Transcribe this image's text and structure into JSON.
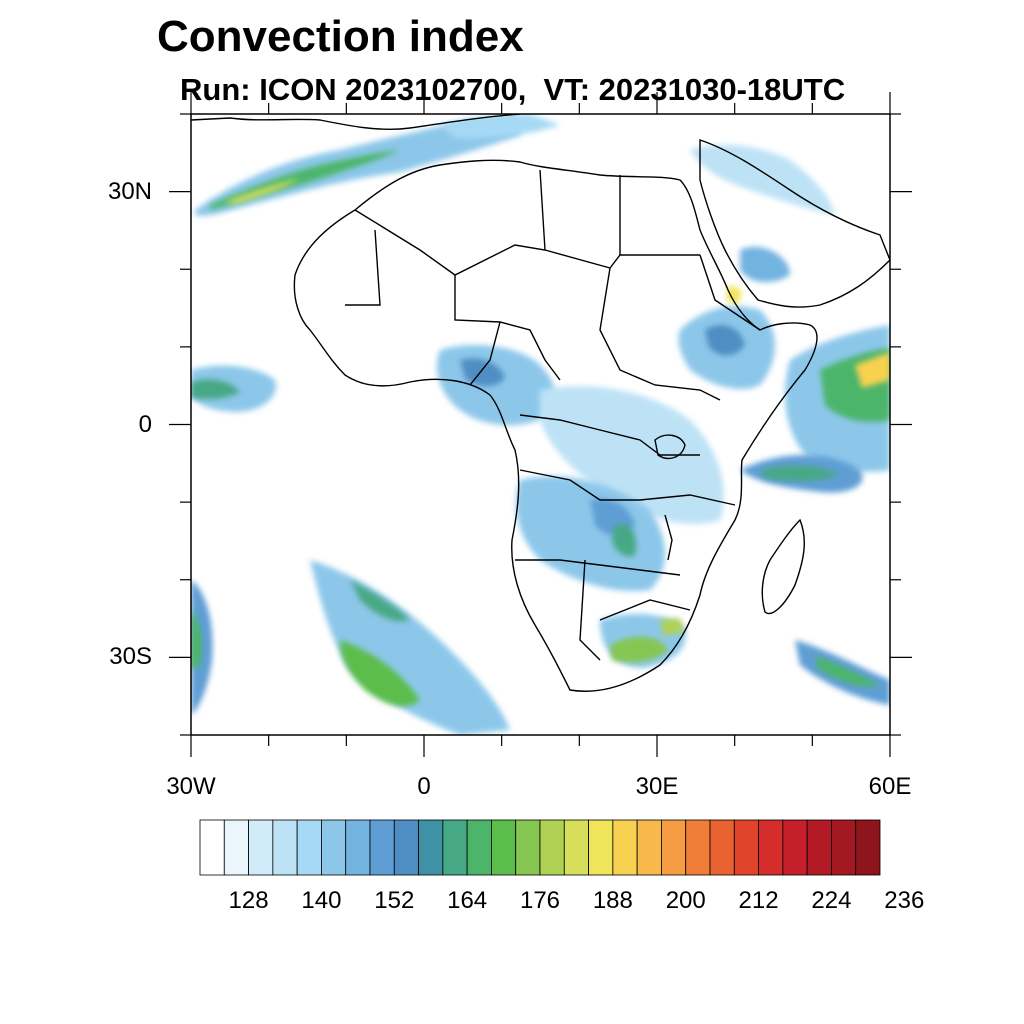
{
  "title": "Convection index",
  "subtitle": "Run: ICON 2023102700,  VT: 20231030-18UTC",
  "map": {
    "lon_range": [
      -30,
      60
    ],
    "lat_range": [
      -40,
      40
    ],
    "x_ticks": [
      {
        "lon": -30,
        "label": "30W"
      },
      {
        "lon": 0,
        "label": "0"
      },
      {
        "lon": 30,
        "label": "30E"
      },
      {
        "lon": 60,
        "label": "60E"
      }
    ],
    "y_ticks": [
      {
        "lat": 30,
        "label": "30N"
      },
      {
        "lat": 0,
        "label": "0"
      },
      {
        "lat": -30,
        "label": "30S"
      }
    ]
  },
  "colorbar": {
    "colors": [
      "#ffffff",
      "#eaf5fc",
      "#d2ebf8",
      "#bde2f6",
      "#a6d9f5",
      "#8cc7ea",
      "#72b3e0",
      "#5e9ed4",
      "#4f8ec3",
      "#3f92a6",
      "#47a885",
      "#4cb56a",
      "#5bbd4c",
      "#85c652",
      "#b0d254",
      "#d6de5a",
      "#f0e55a",
      "#f8d150",
      "#f8b84c",
      "#f69c42",
      "#f07e39",
      "#e96231",
      "#e0452c",
      "#d52c2c",
      "#c51f2b",
      "#b41a26",
      "#a31821",
      "#8e151c"
    ],
    "labels": [
      "128",
      "140",
      "152",
      "164",
      "176",
      "188",
      "200",
      "212",
      "224",
      "236"
    ]
  }
}
